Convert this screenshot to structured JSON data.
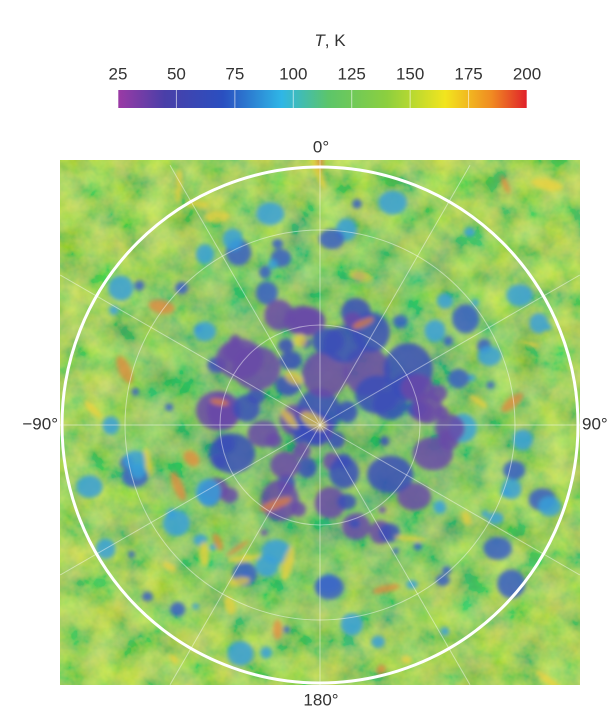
{
  "colorbar": {
    "symbol": "T",
    "unit_text": ", K",
    "range": [
      25,
      200
    ],
    "ticks": [
      25,
      50,
      75,
      100,
      125,
      150,
      175,
      200
    ],
    "color_stops": [
      {
        "value": 25,
        "color": "#9b3aa5"
      },
      {
        "value": 45,
        "color": "#4a3fa8"
      },
      {
        "value": 70,
        "color": "#2a4fc0"
      },
      {
        "value": 95,
        "color": "#2fb6e6"
      },
      {
        "value": 115,
        "color": "#5cc56a"
      },
      {
        "value": 140,
        "color": "#8ccf3f"
      },
      {
        "value": 165,
        "color": "#f2e51e"
      },
      {
        "value": 185,
        "color": "#f08a22"
      },
      {
        "value": 200,
        "color": "#e0202a"
      }
    ]
  },
  "map": {
    "labels": {
      "top": "0°",
      "bottom": "180°",
      "left": "−90°",
      "right": "90°"
    }
  }
}
